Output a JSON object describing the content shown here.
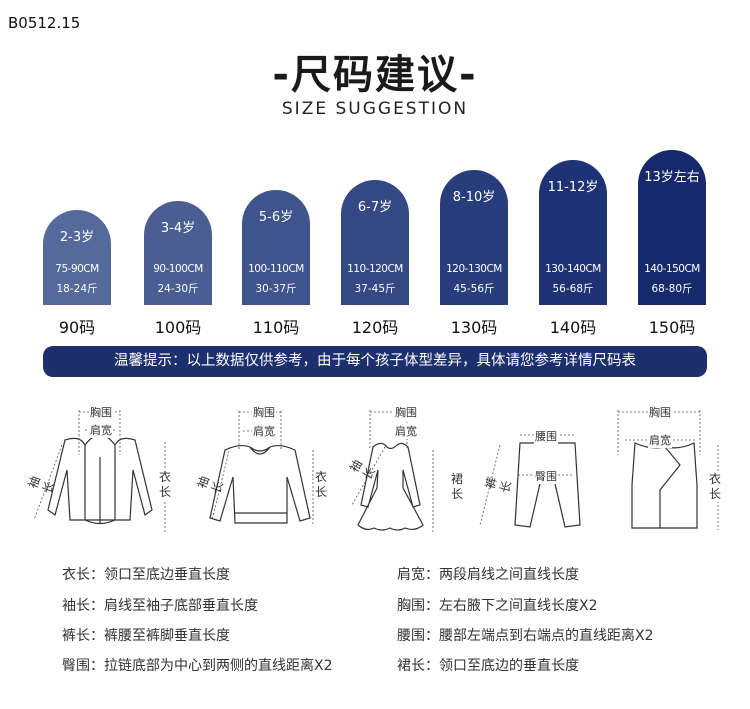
{
  "product_code": "B0512.15",
  "title": "-尺码建议-",
  "subtitle": "SIZE SUGGESTION",
  "colors": {
    "arch_light": "#56699b",
    "arch_dark": "#14276b",
    "banner": "#1d2f6c"
  },
  "sizes": [
    {
      "age": "2-3岁",
      "height": "75-90CM",
      "weight": "18-24斤",
      "size": "90码",
      "color": "#56699b"
    },
    {
      "age": "3-4岁",
      "height": "90-100CM",
      "weight": "24-30斤",
      "size": "100码",
      "color": "#4a5e94"
    },
    {
      "age": "5-6岁",
      "height": "100-110CM",
      "weight": "30-37斤",
      "size": "110码",
      "color": "#3f538c"
    },
    {
      "age": "6-7岁",
      "height": "110-120CM",
      "weight": "37-45斤",
      "size": "120码",
      "color": "#334884"
    },
    {
      "age": "8-10岁",
      "height": "120-130CM",
      "weight": "45-56斤",
      "size": "130码",
      "color": "#283d7c"
    },
    {
      "age": "11-12岁",
      "height": "130-140CM",
      "weight": "56-68斤",
      "size": "140码",
      "color": "#1f3374"
    },
    {
      "age": "13岁左右",
      "height": "140-150CM",
      "weight": "68-80斤",
      "size": "150码",
      "color": "#16296b"
    }
  ],
  "tip": "温馨提示：以上数据仅供参考，由于每个孩子体型差异，具体请您参考详情尺码表",
  "garments": {
    "jacket": {
      "chest": "胸围",
      "shoulder": "肩宽",
      "sleeve": "袖长",
      "length": "衣长"
    },
    "sweater": {
      "chest": "胸围",
      "shoulder": "肩宽",
      "sleeve": "袖长",
      "length": "衣长"
    },
    "dress": {
      "chest": "胸围",
      "shoulder": "肩宽",
      "sleeve": "袖长",
      "length": "裙长"
    },
    "pants": {
      "waist": "腰围",
      "hip": "臀围",
      "length": "裤长"
    },
    "vest": {
      "chest": "胸围",
      "shoulder": "肩宽",
      "length": "衣长"
    }
  },
  "definitions_left": [
    "衣长：领口至底边垂直长度",
    "袖长：肩线至袖子底部垂直长度",
    "裤长：裤腰至裤脚垂直长度",
    "臀围：拉链底部为中心到两侧的直线距离X2"
  ],
  "definitions_right": [
    "肩宽：两段肩线之间直线长度",
    "胸围：左右腋下之间直线长度X2",
    "腰围：腰部左端点到右端点的直线距离X2",
    "裙长：领口至底边的垂直长度"
  ]
}
